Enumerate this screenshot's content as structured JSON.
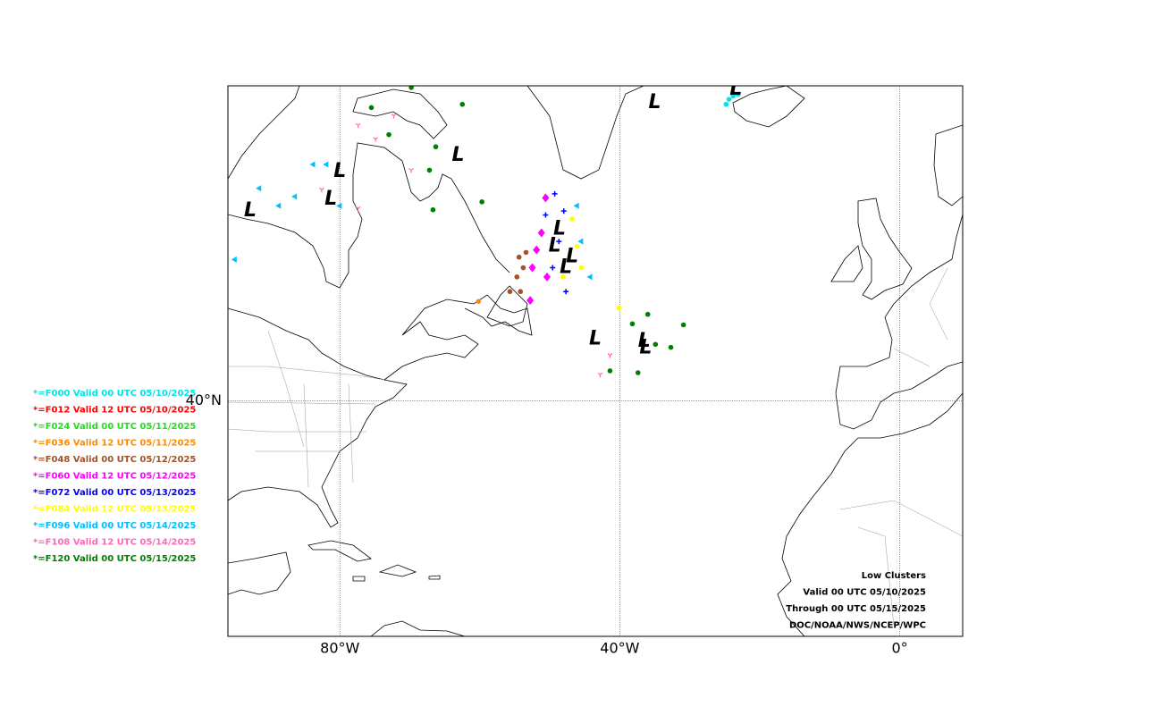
{
  "chart_data": {
    "type": "map",
    "projection": "mercator",
    "xlim": [
      -96,
      9
    ],
    "ylim": [
      10,
      66
    ],
    "xticks": [
      {
        "value": -80,
        "label": "80°W"
      },
      {
        "value": -40,
        "label": "40°W"
      },
      {
        "value": 0,
        "label": "0°"
      }
    ],
    "yticks": [
      {
        "value": 40,
        "label": "40°N"
      }
    ],
    "grid": true,
    "info": [
      "Low Clusters",
      "Valid 00 UTC 05/10/2025",
      "Through 00 UTC 05/15/2025",
      "DOC/NOAA/NWS/NCEP/WPC"
    ],
    "lows": [
      {
        "label": "L",
        "lon": -92.8,
        "lat": 57.6
      },
      {
        "label": "L",
        "lon": -80.0,
        "lat": 60.5
      },
      {
        "label": "L",
        "lon": -81.3,
        "lat": 58.5
      },
      {
        "label": "L",
        "lon": -63.1,
        "lat": 61.6
      },
      {
        "label": "L",
        "lon": -35.0,
        "lat": 65.0
      },
      {
        "label": "L",
        "lon": -23.4,
        "lat": 65.8
      },
      {
        "label": "L",
        "lon": -48.6,
        "lat": 56.2
      },
      {
        "label": "L",
        "lon": -49.3,
        "lat": 54.8
      },
      {
        "label": "L",
        "lon": -46.8,
        "lat": 53.9
      },
      {
        "label": "L",
        "lon": -47.7,
        "lat": 53.0
      },
      {
        "label": "L",
        "lon": -43.5,
        "lat": 46.4
      },
      {
        "label": "L",
        "lon": -36.5,
        "lat": 46.2
      },
      {
        "label": "L",
        "lon": -36.3,
        "lat": 45.5
      }
    ],
    "series": [
      {
        "name": "*=F000 Valid 00 UTC 05/10/2025",
        "color": "#00e5e5",
        "marker": "circle",
        "lon": [
          -23.8,
          -24.4,
          -24.8,
          -23.1
        ],
        "lat": [
          65.4,
          65.2,
          64.9,
          65.5
        ]
      },
      {
        "name": "*=F012 Valid 12 UTC 05/10/2025",
        "color": "#ff0000",
        "marker": "circle",
        "lon": [],
        "lat": []
      },
      {
        "name": "*=F024 Valid 00 UTC 05/11/2025",
        "color": "#22dd22",
        "marker": "circle",
        "lon": [],
        "lat": []
      },
      {
        "name": "*=F036 Valid 12 UTC 05/11/2025",
        "color": "#ff8c00",
        "marker": "circle",
        "lon": [
          -60.2
        ],
        "lat": [
          50.0
        ]
      },
      {
        "name": "*=F048 Valid 00 UTC 05/12/2025",
        "color": "#a0522d",
        "marker": "circle",
        "lon": [
          -54.4,
          -53.8,
          -54.7,
          -54.2,
          -55.7,
          -53.4
        ],
        "lat": [
          53.9,
          53.0,
          52.2,
          50.9,
          50.9,
          54.3
        ]
      },
      {
        "name": "*=F060 Valid 12 UTC 05/12/2025",
        "color": "#ff00ff",
        "marker": "diamond",
        "lon": [
          -51.9,
          -52.5,
          -50.6,
          -51.2,
          -52.8,
          -50.4
        ],
        "lat": [
          54.5,
          53.0,
          58.6,
          55.9,
          50.1,
          52.2
        ]
      },
      {
        "name": "*=F072 Valid 00 UTC 05/13/2025",
        "color": "#0000ff",
        "marker": "plus",
        "lon": [
          -49.3,
          -50.6,
          -48.7,
          -49.6,
          -47.7,
          -48.0
        ],
        "lat": [
          58.9,
          57.3,
          55.2,
          53.0,
          50.9,
          57.6
        ]
      },
      {
        "name": "*=F084 Valid 12 UTC 05/13/2025",
        "color": "#ffff00",
        "marker": "circle",
        "lon": [
          -46.8,
          -46.1,
          -45.5,
          -40.1,
          -48.1
        ],
        "lat": [
          57.0,
          54.8,
          53.0,
          49.4,
          52.2
        ]
      },
      {
        "name": "*=F096 Valid 00 UTC 05/14/2025",
        "color": "#00bfff",
        "marker": "triangle",
        "lon": [
          -95.0,
          -91.5,
          -88.7,
          -86.4,
          -83.8,
          -81.9,
          -80.0,
          -46.1,
          -44.2,
          -45.5
        ],
        "lat": [
          53.7,
          59.3,
          58.0,
          58.7,
          61.0,
          61.0,
          58.0,
          58.0,
          52.2,
          55.2
        ]
      },
      {
        "name": "*=F108 Valid 12 UTC 05/14/2025",
        "color": "#ff69b4",
        "marker": "tri",
        "lon": [
          -77.4,
          -74.9,
          -72.3,
          -69.8,
          -77.4,
          -41.4,
          -42.8,
          -82.6
        ],
        "lat": [
          63.6,
          62.7,
          64.2,
          60.6,
          57.8,
          44.8,
          42.8,
          59.2
        ]
      },
      {
        "name": "*=F120 Valid 00 UTC 05/15/2025",
        "color": "#008000",
        "marker": "circle",
        "lon": [
          -75.5,
          -73.0,
          -69.8,
          -66.3,
          -67.2,
          -62.5,
          -59.7,
          -66.7,
          -38.2,
          -36.0,
          -30.9,
          -34.9,
          -37.4,
          -41.4,
          -32.7
        ],
        "lat": [
          64.7,
          63.0,
          65.9,
          62.2,
          60.6,
          64.9,
          58.3,
          57.7,
          47.9,
          48.8,
          47.8,
          45.9,
          43.0,
          43.2,
          45.6
        ]
      }
    ]
  }
}
